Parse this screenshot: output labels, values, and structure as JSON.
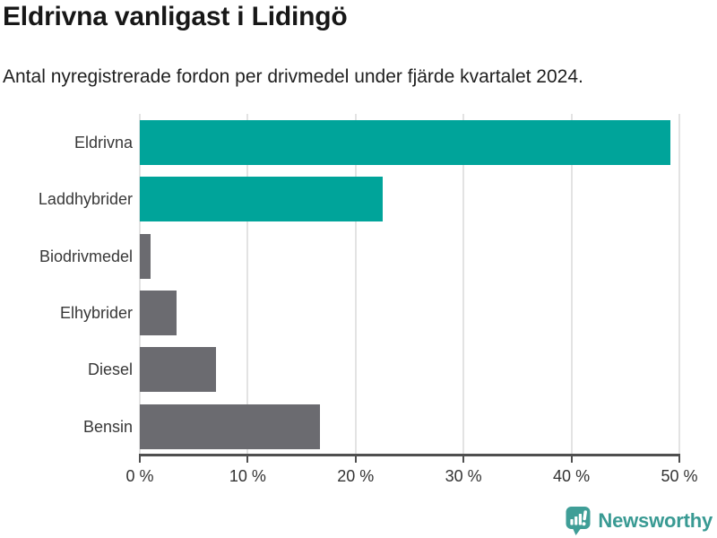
{
  "title": "Eldrivna vanligast i Lidingö",
  "subtitle": "Antal nyregistrerade fordon per drivmedel under fjärde kvartalet 2024.",
  "chart_data": {
    "type": "bar",
    "orientation": "horizontal",
    "title": "Eldrivna vanligast i Lidingö",
    "subtitle": "Antal nyregistrerade fordon per drivmedel under fjärde kvartalet 2024.",
    "categories": [
      "Eldrivna",
      "Laddhybrider",
      "Biodrivmedel",
      "Elhybrider",
      "Diesel",
      "Bensin"
    ],
    "values": [
      49.2,
      22.5,
      1.0,
      3.4,
      7.1,
      16.7
    ],
    "unit": "%",
    "bar_colors": [
      "#00a49a",
      "#00a49a",
      "#6b6b70",
      "#6b6b70",
      "#6b6b70",
      "#6b6b70"
    ],
    "xlabel": "",
    "ylabel": "",
    "xlim": [
      0,
      51
    ],
    "x_ticks": [
      0,
      10,
      20,
      30,
      40,
      50
    ],
    "x_tick_labels": [
      "0 %",
      "10 %",
      "20 %",
      "30 %",
      "40 %",
      "50 %"
    ],
    "grid": true,
    "legend": false
  },
  "colors": {
    "accent_teal": "#00a49a",
    "bar_gray": "#6b6b70",
    "gridline": "#e3e3e3",
    "axis": "#4f4f4f",
    "brand_teal": "#399a93"
  },
  "footer": {
    "brand": "Newsworthy",
    "logo_icon": "bar-chart-speech-bubble-icon"
  }
}
